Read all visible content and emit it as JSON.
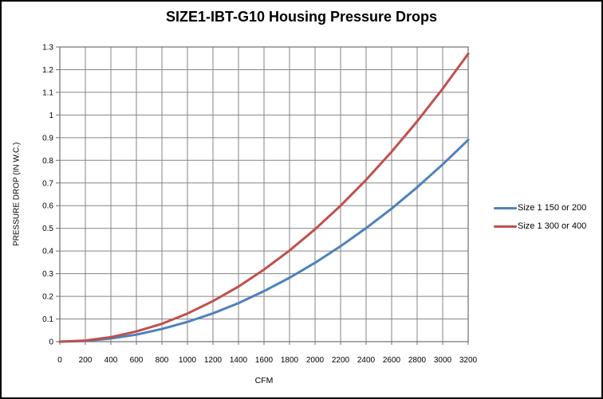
{
  "chart_data": {
    "type": "line",
    "title": "SIZE1-IBT-G10 Housing Pressure Drops",
    "xlabel": "CFM",
    "ylabel": "PRESSURE DROP (IN W.C.)",
    "x": [
      0,
      200,
      400,
      600,
      800,
      1000,
      1200,
      1400,
      1600,
      1800,
      2000,
      2200,
      2400,
      2600,
      2800,
      3000,
      3200
    ],
    "series": [
      {
        "name": "Size 1 150 or 200",
        "color": "#4F81BD",
        "values": [
          0,
          0.003,
          0.014,
          0.031,
          0.056,
          0.087,
          0.125,
          0.17,
          0.223,
          0.282,
          0.348,
          0.421,
          0.501,
          0.587,
          0.681,
          0.782,
          0.89
        ]
      },
      {
        "name": "Size 1 300 or 400",
        "color": "#C0504D",
        "values": [
          0,
          0.005,
          0.02,
          0.045,
          0.079,
          0.124,
          0.179,
          0.243,
          0.318,
          0.402,
          0.496,
          0.6,
          0.714,
          0.838,
          0.972,
          1.116,
          1.27
        ]
      }
    ],
    "xlim": [
      0,
      3200
    ],
    "ylim": [
      0,
      1.3
    ],
    "x_tick_labels": [
      "0",
      "200",
      "400",
      "600",
      "800",
      "1000",
      "1200",
      "1400",
      "1600",
      "1800",
      "2000",
      "2200",
      "2400",
      "2600",
      "2800",
      "3000",
      "3200"
    ],
    "y_tick_labels": [
      "0",
      "0.1",
      "0.2",
      "0.3",
      "0.4",
      "0.5",
      "0.6",
      "0.7",
      "0.8",
      "0.9",
      "1",
      "1.1",
      "1.2",
      "1.3"
    ],
    "grid": true,
    "legend_position": "right",
    "gridline_color": "#858585",
    "plot_border_color": "#6f6f6f",
    "tick_text_color": "#000000"
  }
}
